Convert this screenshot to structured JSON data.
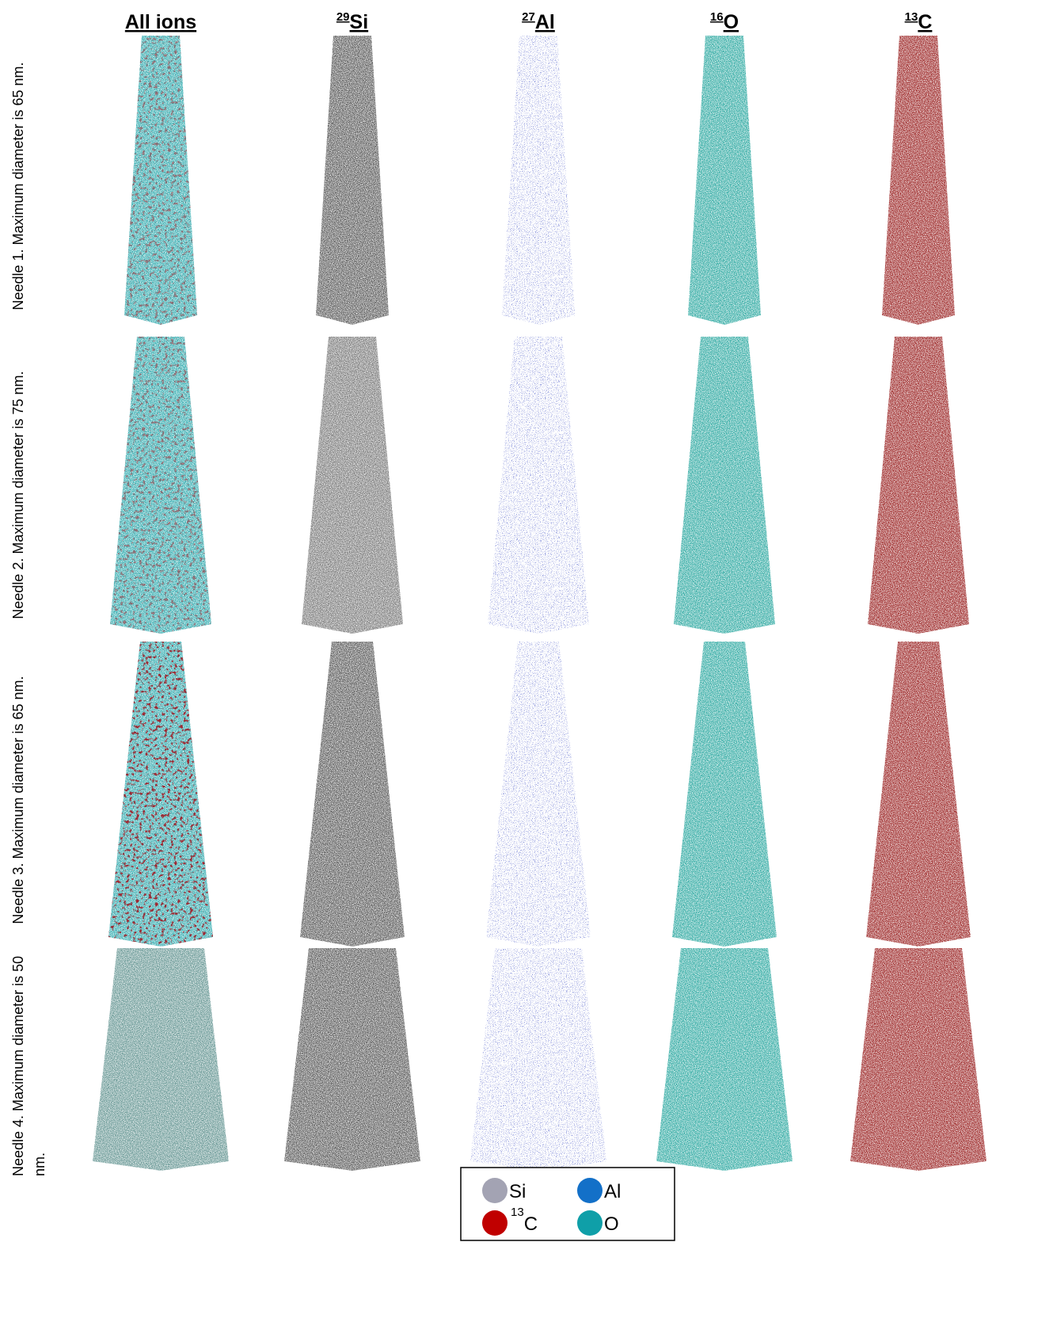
{
  "headers": [
    {
      "label": "All ions"
    },
    {
      "mass": "29",
      "label": "Si"
    },
    {
      "mass": "27",
      "label": "Al"
    },
    {
      "mass": "16",
      "label": "O"
    },
    {
      "mass": "13",
      "label": "C"
    }
  ],
  "rows": [
    "Needle 1. Maximum diameter is 65 nm.",
    "Needle 2. Maximum diameter is 75 nm.",
    "Needle 3. Maximum diameter is 65 nm.",
    "Needle 4. Maximum diameter is 50 nm."
  ],
  "legend": [
    {
      "label": "Si"
    },
    {
      "label": "Al"
    },
    {
      "mass": "13",
      "label": "C"
    },
    {
      "label": "O"
    }
  ]
}
